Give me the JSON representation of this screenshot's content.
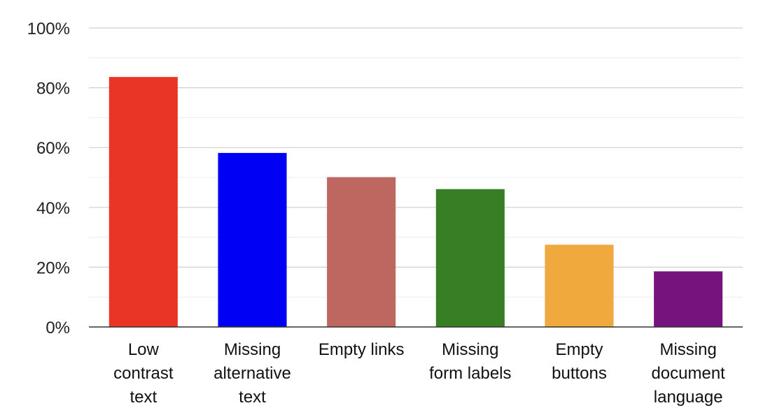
{
  "chart_data": {
    "type": "bar",
    "title": "",
    "xlabel": "",
    "ylabel": "",
    "ylim": [
      0,
      100
    ],
    "y_ticks": [
      0,
      20,
      40,
      60,
      80,
      100
    ],
    "y_tick_labels": [
      "0%",
      "20%",
      "40%",
      "60%",
      "80%",
      "100%"
    ],
    "grid": true,
    "legend": "none",
    "categories": [
      "Low contrast text",
      "Missing alternative text",
      "Empty links",
      "Missing form labels",
      "Empty buttons",
      "Missing document language"
    ],
    "category_label_lines": [
      [
        "Low",
        "contrast",
        "text"
      ],
      [
        "Missing",
        "alternative",
        "text"
      ],
      [
        "Empty links"
      ],
      [
        "Missing",
        "form labels"
      ],
      [
        "Empty",
        "buttons"
      ],
      [
        "Missing",
        "document",
        "language"
      ]
    ],
    "values": [
      83.6,
      58.2,
      50.1,
      46.1,
      27.5,
      18.6
    ],
    "colors": [
      "#e93526",
      "#0000f5",
      "#be6660",
      "#387e24",
      "#f0a93c",
      "#75147c"
    ]
  }
}
